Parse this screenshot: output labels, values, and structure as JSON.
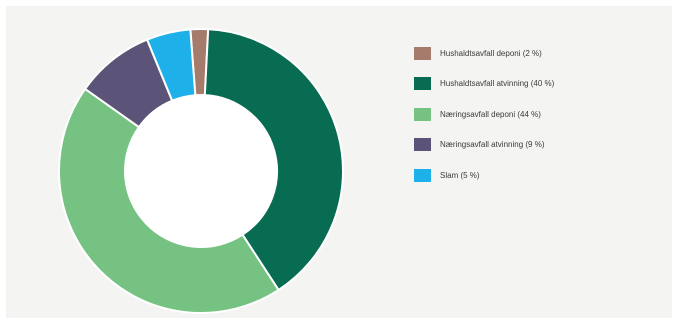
{
  "chart_data": {
    "type": "pie",
    "donut": true,
    "legend_position": "right",
    "slices": [
      {
        "label": "Hushaldtsavfall deponi (2 %)",
        "value": 2,
        "color": "#a57c6b"
      },
      {
        "label": "Hushaldtsavfall atvinning (40 %)",
        "value": 40,
        "color": "#086c52"
      },
      {
        "label": "Næringsavfall deponi (44 %)",
        "value": 44,
        "color": "#76c283"
      },
      {
        "label": "Næringsavfall atvinning (9 %)",
        "value": 9,
        "color": "#5b5478"
      },
      {
        "label": "Slam (5 %)",
        "value": 5,
        "color": "#1eb0e9"
      }
    ]
  }
}
